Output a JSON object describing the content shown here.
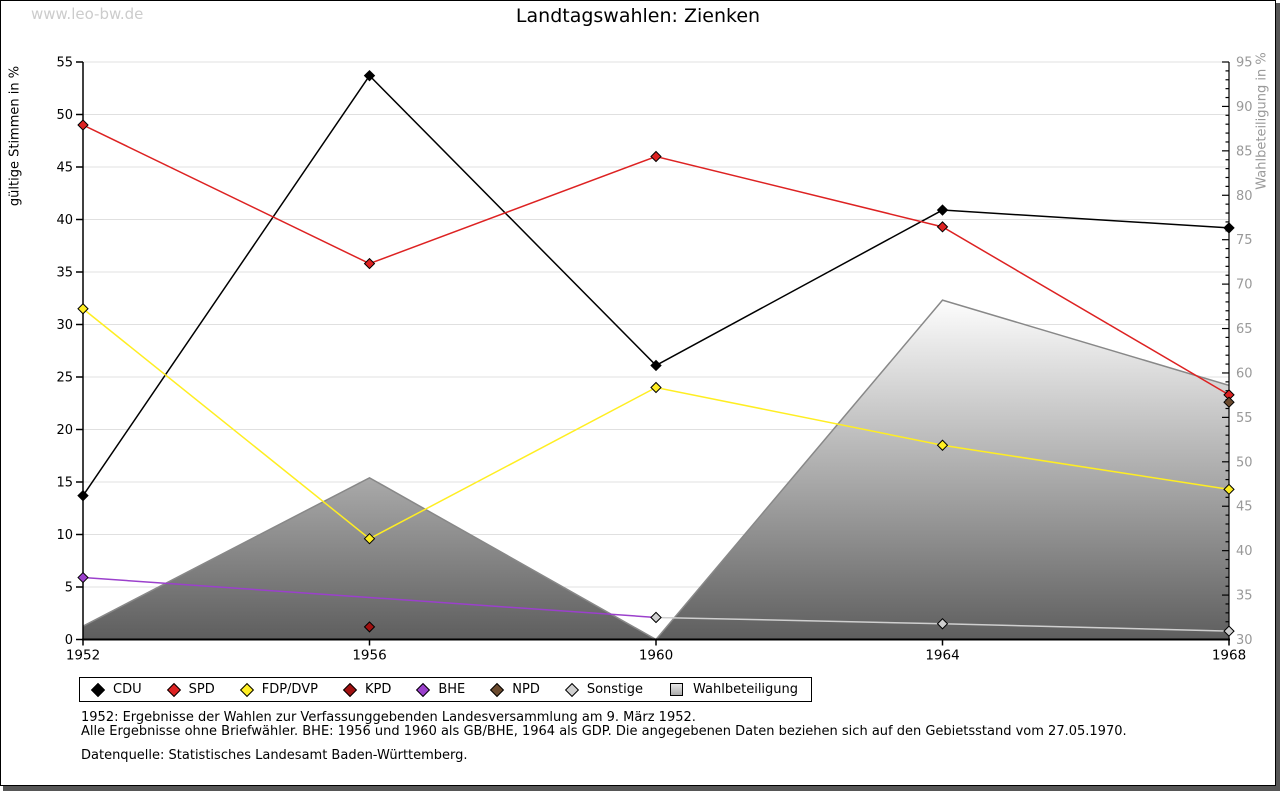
{
  "watermark": "www.leo-bw.de",
  "chart_data": {
    "type": "line",
    "title": "Landtagswahlen: Zienken",
    "x_categories": [
      "1952",
      "1956",
      "1960",
      "1964",
      "1968"
    ],
    "left_axis": {
      "label": "gültige Stimmen in %",
      "min": 0,
      "max": 55,
      "tick_step": 5,
      "text_color": "#000000"
    },
    "right_axis": {
      "label": "Wahlbeteiligung in %",
      "min": 30,
      "max": 95,
      "tick_step": 5,
      "minor_step": 1,
      "text_color": "#999999"
    },
    "grid": {
      "on": true,
      "color": "#e0e0e0"
    },
    "series": [
      {
        "name": "CDU",
        "color": "#000000",
        "axis": "left",
        "values": [
          13.7,
          53.7,
          26.1,
          40.9,
          39.2
        ]
      },
      {
        "name": "SPD",
        "color": "#dd2222",
        "axis": "left",
        "values": [
          49.0,
          35.8,
          46.0,
          39.3,
          23.3
        ]
      },
      {
        "name": "FDP/DVP",
        "color": "#ffee22",
        "axis": "left",
        "values": [
          31.5,
          9.6,
          24.0,
          18.5,
          14.3
        ]
      },
      {
        "name": "KPD",
        "color": "#a01010",
        "axis": "left",
        "values": [
          null,
          1.2,
          null,
          null,
          null
        ]
      },
      {
        "name": "BHE",
        "color": "#9b40cc",
        "axis": "left",
        "values": [
          5.9,
          null,
          2.1,
          null,
          null
        ]
      },
      {
        "name": "NPD",
        "color": "#6b4a2e",
        "axis": "left",
        "values": [
          null,
          null,
          null,
          null,
          22.6
        ]
      },
      {
        "name": "Sonstige",
        "color": "#cfcfcf",
        "axis": "left",
        "values": [
          null,
          null,
          2.1,
          1.5,
          0.8
        ]
      }
    ],
    "turnout": {
      "name": "Wahlbeteiligung",
      "axis": "right",
      "values": [
        31.5,
        48.2,
        30.0,
        68.2,
        58.6
      ],
      "outline_color": "#888888",
      "fill_top": "#ffffff",
      "fill_bottom": "#5e5e5e"
    },
    "legend_position": "bottom"
  },
  "footnotes": {
    "note_1952": "1952: Ergebnisse der Wahlen zur Verfassunggebenden Landesversammlung am 9. März 1952.",
    "note_general": "Alle Ergebnisse ohne Briefwähler. BHE: 1956 und 1960 als GB/BHE, 1964 als GDP. Die angegebenen Daten beziehen sich auf den Gebietsstand vom 27.05.1970.",
    "source": "Datenquelle: Statistisches Landesamt Baden-Württemberg."
  }
}
